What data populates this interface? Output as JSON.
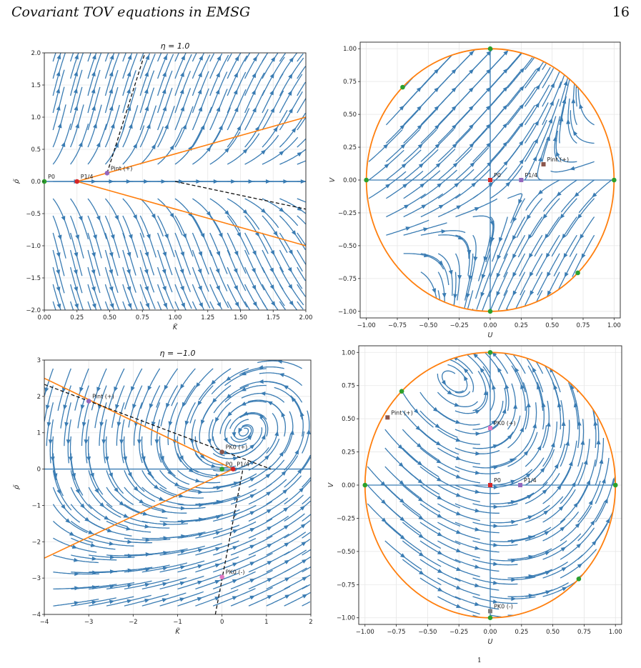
{
  "page": {
    "running_title": "Covariant TOV equations in EMSG",
    "page_number": "16",
    "footnote_mark": "1"
  },
  "colors": {
    "stream": "#3a7cb3",
    "orange": "#ff7f0e",
    "green": "#2ca02c",
    "red": "#d62728",
    "purple": "#9467bd",
    "pink": "#e377c2",
    "brown": "#8c564b",
    "gray": "#7f7f7f"
  },
  "chart_data": [
    {
      "type": "streamplot",
      "title": "η = 1.0",
      "xlabel": "K̃",
      "ylabel": "ρ̃",
      "xlim": [
        0,
        2
      ],
      "ylim": [
        -2,
        2
      ],
      "xticks": [
        "0.00",
        "0.25",
        "0.50",
        "0.75",
        "1.00",
        "1.25",
        "1.50",
        "1.75",
        "2.00"
      ],
      "yticks": [
        "−2.0",
        "−1.5",
        "−1.0",
        "−0.5",
        "0.0",
        "0.5",
        "1.0",
        "1.5",
        "2.0"
      ],
      "points": [
        {
          "label": "P0",
          "x": 0.0,
          "y": 0.0,
          "color": "green"
        },
        {
          "label": "P1/4",
          "x": 0.25,
          "y": 0.0,
          "color": "red"
        },
        {
          "label": "Pint (+)",
          "x": 0.48,
          "y": 0.13,
          "color": "purple"
        }
      ],
      "curves": [
        {
          "style": "orange-solid",
          "points": [
            [
              0.25,
              0.0
            ],
            [
              2.0,
              1.0
            ]
          ]
        },
        {
          "style": "orange-solid",
          "points": [
            [
              0.25,
              0.0
            ],
            [
              2.0,
              -1.0
            ]
          ]
        },
        {
          "style": "black-dashed",
          "points": [
            [
              0.48,
              0.13
            ],
            [
              0.77,
              2.0
            ]
          ]
        },
        {
          "style": "black-dashed",
          "points": [
            [
              1.0,
              0.0
            ],
            [
              2.0,
              -0.43
            ]
          ]
        }
      ]
    },
    {
      "type": "streamplot",
      "title": "",
      "xlabel": "U",
      "ylabel": "V",
      "xlim": [
        -1.05,
        1.05
      ],
      "ylim": [
        -1.05,
        1.05
      ],
      "xticks": [
        "−1.00",
        "−0.75",
        "−0.50",
        "−0.25",
        "0.00",
        "0.25",
        "0.50",
        "0.75",
        "1.00"
      ],
      "yticks": [
        "−1.00",
        "−0.75",
        "−0.50",
        "−0.25",
        "0.00",
        "0.25",
        "0.50",
        "0.75",
        "1.00"
      ],
      "points": [
        {
          "label": "P0",
          "x": 0.0,
          "y": 0.0,
          "color": "red"
        },
        {
          "label": "P1/4",
          "x": 0.25,
          "y": 0.0,
          "color": "purple"
        },
        {
          "label": "Pint (+)",
          "x": 0.43,
          "y": 0.12,
          "color": "brown"
        }
      ],
      "boundary_points": [
        [
          1,
          0
        ],
        [
          0,
          1
        ],
        [
          -1,
          0
        ],
        [
          0,
          -1
        ],
        [
          -0.707,
          0.707
        ],
        [
          0.707,
          -0.707
        ]
      ]
    },
    {
      "type": "streamplot",
      "title": "η = −1.0",
      "xlabel": "K̃",
      "ylabel": "ρ̃",
      "xlim": [
        -4,
        2
      ],
      "ylim": [
        -4,
        3
      ],
      "xticks": [
        "−4",
        "−3",
        "−2",
        "−1",
        "0",
        "1",
        "2"
      ],
      "yticks": [
        "−4",
        "−3",
        "−2",
        "−1",
        "0",
        "1",
        "2",
        "3"
      ],
      "points": [
        {
          "label": "P0",
          "x": 0.0,
          "y": 0.0,
          "color": "green"
        },
        {
          "label": "P1/4",
          "x": 0.25,
          "y": 0.0,
          "color": "red"
        },
        {
          "label": "PK0 (+)",
          "x": 0.0,
          "y": 0.47,
          "color": "brown"
        },
        {
          "label": "PK0 (-)",
          "x": 0.0,
          "y": -2.97,
          "color": "pink"
        },
        {
          "label": "Pint (+)",
          "x": -3.0,
          "y": 1.87,
          "color": "purple"
        }
      ],
      "curves": [
        {
          "style": "orange-solid",
          "points": [
            [
              -4,
              2.5
            ],
            [
              0.25,
              0.0
            ]
          ]
        },
        {
          "style": "orange-solid",
          "points": [
            [
              -4,
              -2.45
            ],
            [
              0.25,
              0.0
            ]
          ]
        },
        {
          "style": "black-dashed",
          "points": [
            [
              -4,
              2.33
            ],
            [
              1.1,
              0.0
            ]
          ]
        },
        {
          "style": "black-dashed",
          "points": [
            [
              -0.15,
              -4.0
            ],
            [
              0.47,
              0.0
            ]
          ]
        }
      ]
    },
    {
      "type": "streamplot",
      "title": "",
      "xlabel": "U",
      "ylabel": "V",
      "xlim": [
        -1.05,
        1.05
      ],
      "ylim": [
        -1.05,
        1.05
      ],
      "xticks": [
        "−1.00",
        "−0.75",
        "−0.50",
        "−0.25",
        "0.00",
        "0.25",
        "0.50",
        "0.75",
        "1.00"
      ],
      "yticks": [
        "−1.00",
        "−0.75",
        "−0.50",
        "−0.25",
        "0.00",
        "0.25",
        "0.50",
        "0.75",
        "1.00"
      ],
      "points": [
        {
          "label": "P0",
          "x": 0.0,
          "y": 0.0,
          "color": "red"
        },
        {
          "label": "P1/4",
          "x": 0.24,
          "y": 0.0,
          "color": "purple"
        },
        {
          "label": "PK0 (+)",
          "x": 0.0,
          "y": 0.43,
          "color": "pink"
        },
        {
          "label": "PK0 (-)",
          "x": 0.0,
          "y": -0.95,
          "color": "gray"
        },
        {
          "label": "Pint (+)",
          "x": -0.82,
          "y": 0.51,
          "color": "brown"
        }
      ],
      "boundary_points": [
        [
          1,
          0
        ],
        [
          0,
          1
        ],
        [
          -1,
          0
        ],
        [
          0,
          -1
        ],
        [
          -0.707,
          0.707
        ],
        [
          0.707,
          -0.707
        ]
      ]
    }
  ]
}
